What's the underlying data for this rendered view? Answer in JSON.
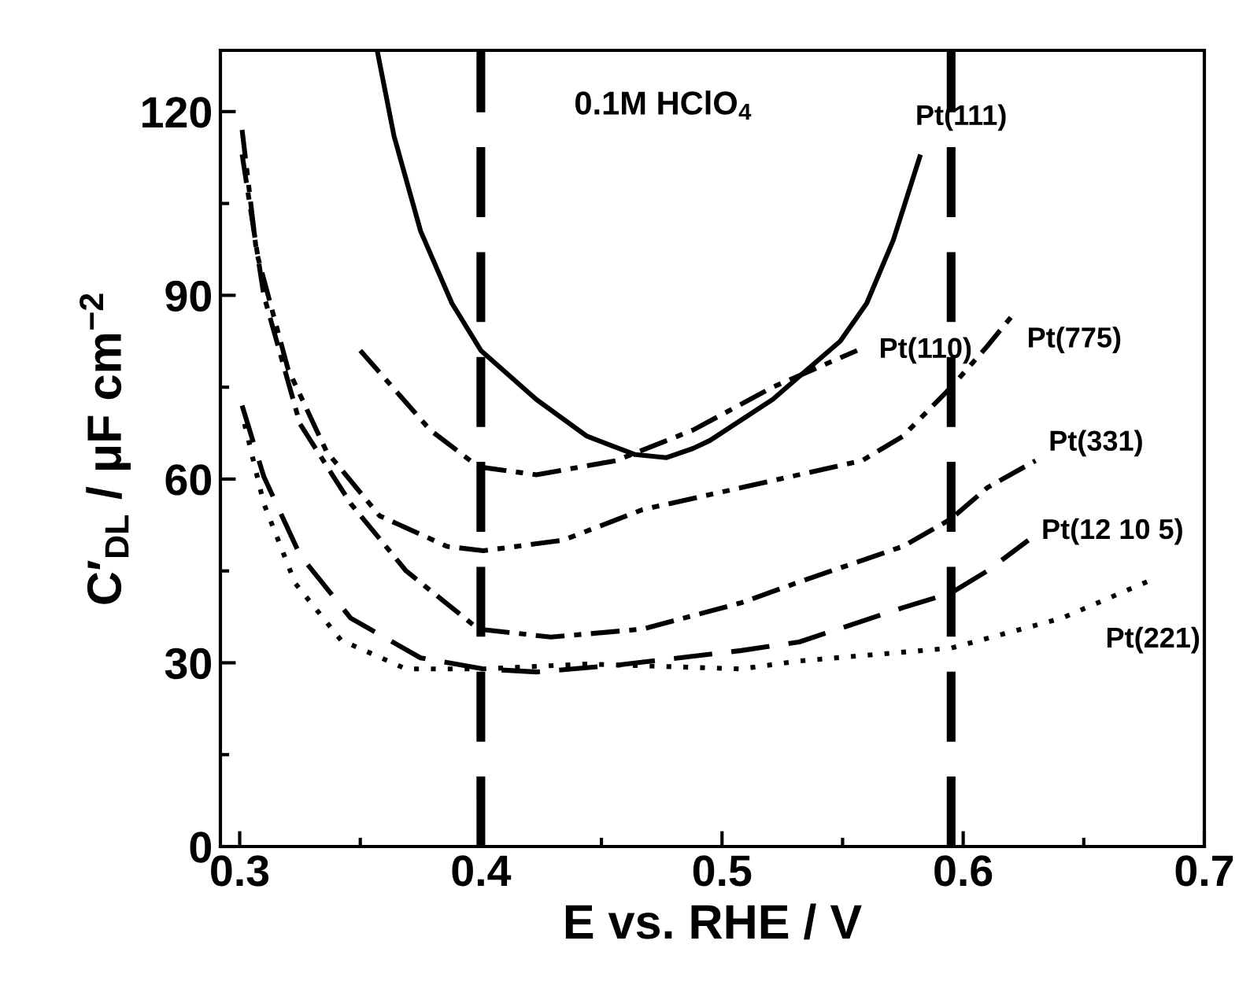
{
  "chart_data": {
    "type": "line",
    "xlabel": "E vs. RHE / V",
    "ylabel": "C′$_{DL}$ / μF cm$^{−2}$",
    "annotations": [
      "0.1M HClO$_{4}$"
    ],
    "xlim": [
      0.292,
      0.7
    ],
    "ylim": [
      0,
      130
    ],
    "xticks": [
      0.3,
      0.4,
      0.5,
      0.6,
      0.7
    ],
    "yticks": [
      0,
      30,
      60,
      90,
      120
    ],
    "grid": false,
    "legend": false,
    "ref_lines": [
      {
        "axis": "x",
        "value": 0.4,
        "color": "#000000",
        "line_style": "dashed"
      },
      {
        "axis": "x",
        "value": 0.595,
        "color": "#000000",
        "line_style": "dashed"
      }
    ],
    "series": [
      {
        "name": "Pt(111)",
        "color": "#000000",
        "line_style": "solid",
        "x": [
          0.357,
          0.364,
          0.375,
          0.388,
          0.4,
          0.423,
          0.444,
          0.464,
          0.477,
          0.488,
          0.495,
          0.521,
          0.549,
          0.56,
          0.571,
          0.582
        ],
        "values": [
          130,
          116,
          100.5,
          88.7,
          81,
          73,
          67,
          64,
          63.5,
          65,
          66.3,
          73,
          82.5,
          88.7,
          99,
          112.6
        ]
      },
      {
        "name": "Pt(110)",
        "color": "#000000",
        "line_style": "dashdot",
        "x": [
          0.35,
          0.379,
          0.399,
          0.423,
          0.456,
          0.488,
          0.521,
          0.556
        ],
        "values": [
          81,
          68,
          62,
          60.7,
          63,
          68,
          75,
          81
        ]
      },
      {
        "name": "Pt(775)",
        "color": "#000000",
        "line_style": "dashdotdot",
        "x": [
          0.301,
          0.307,
          0.32,
          0.336,
          0.358,
          0.386,
          0.401,
          0.434,
          0.467,
          0.508,
          0.558,
          0.575,
          0.595,
          0.61,
          0.621
        ],
        "values": [
          117,
          97,
          78,
          64.5,
          54,
          49,
          48.3,
          50,
          55,
          58.6,
          63,
          67,
          75,
          81.7,
          87
        ]
      },
      {
        "name": "Pt(331)",
        "color": "#000000",
        "line_style": "dashdot",
        "x": [
          0.301,
          0.31,
          0.325,
          0.346,
          0.369,
          0.399,
          0.429,
          0.467,
          0.508,
          0.532,
          0.575,
          0.595,
          0.61,
          0.63
        ],
        "values": [
          113,
          90,
          69,
          56,
          45,
          35.5,
          34.2,
          35.5,
          39.8,
          43.2,
          49,
          53.5,
          58.6,
          63
        ]
      },
      {
        "name": "Pt(12 10 5)",
        "color": "#000000",
        "line_style": "dashed",
        "x": [
          0.301,
          0.31,
          0.325,
          0.346,
          0.375,
          0.401,
          0.423,
          0.456,
          0.508,
          0.532,
          0.575,
          0.595,
          0.61,
          0.627
        ],
        "values": [
          72,
          60.4,
          47.6,
          37.3,
          30.8,
          29,
          28.5,
          29.6,
          32,
          33.4,
          39,
          41.4,
          45,
          50
        ]
      },
      {
        "name": "Pt(221)",
        "color": "#000000",
        "line_style": "dotted",
        "x": [
          0.302,
          0.31,
          0.323,
          0.342,
          0.369,
          0.401,
          0.444,
          0.508,
          0.532,
          0.595,
          0.641,
          0.679
        ],
        "values": [
          69,
          56,
          43,
          33.7,
          29,
          29,
          29.8,
          29,
          30.3,
          32.4,
          37.3,
          43.7
        ]
      }
    ]
  }
}
